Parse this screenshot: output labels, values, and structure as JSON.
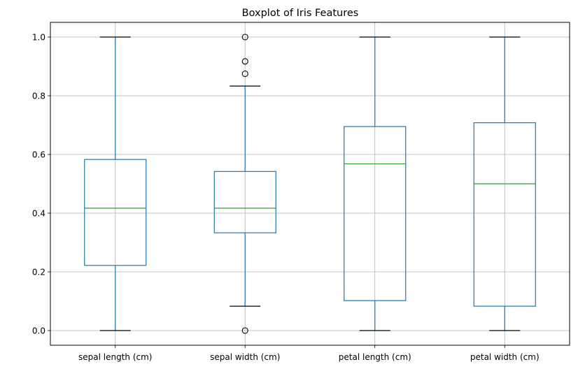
{
  "chart_data": {
    "type": "boxplot",
    "title": "Boxplot of Iris Features",
    "xlabel": "",
    "ylabel": "",
    "ylim": [
      -0.05,
      1.05
    ],
    "yticks": [
      0.0,
      0.2,
      0.4,
      0.6,
      0.8,
      1.0
    ],
    "ytick_labels": [
      "0.0",
      "0.2",
      "0.4",
      "0.6",
      "0.8",
      "1.0"
    ],
    "grid": true,
    "categories": [
      "sepal length (cm)",
      "sepal width (cm)",
      "petal length (cm)",
      "petal width (cm)"
    ],
    "boxes": [
      {
        "name": "sepal length (cm)",
        "whislo": 0.0,
        "q1": 0.222,
        "med": 0.417,
        "q3": 0.583,
        "whishi": 1.0,
        "fliers": []
      },
      {
        "name": "sepal width (cm)",
        "whislo": 0.083,
        "q1": 0.333,
        "med": 0.417,
        "q3": 0.542,
        "whishi": 0.833,
        "fliers": [
          0.0,
          0.875,
          0.917,
          1.0
        ]
      },
      {
        "name": "petal length (cm)",
        "whislo": 0.0,
        "q1": 0.102,
        "med": 0.568,
        "q3": 0.695,
        "whishi": 1.0,
        "fliers": []
      },
      {
        "name": "petal width (cm)",
        "whislo": 0.0,
        "q1": 0.083,
        "med": 0.5,
        "q3": 0.708,
        "whishi": 1.0,
        "fliers": []
      }
    ]
  },
  "colors": {
    "box": "#1f77b4",
    "median": "#2ca02c",
    "whisker_cap": "#000000",
    "grid": "#b0b0b0",
    "axes": "#000000",
    "flier_edge": "#000000"
  }
}
